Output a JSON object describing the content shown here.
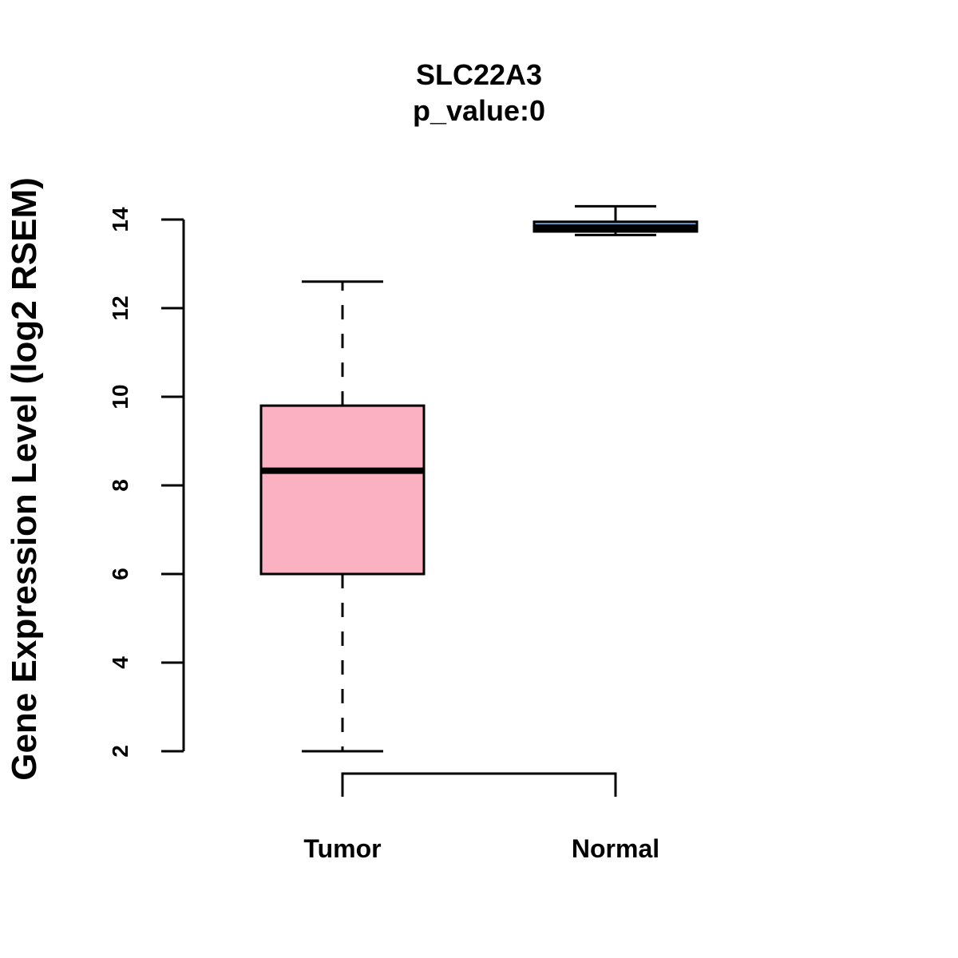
{
  "chart_data": {
    "type": "boxplot",
    "title": "SLC22A3",
    "subtitle": "p_value:0",
    "xlabel": "",
    "ylabel": "Gene Expression Level (log2 RSEM)",
    "ylim": [
      2,
      14
    ],
    "yticks": [
      2,
      4,
      6,
      8,
      10,
      12,
      14
    ],
    "categories": [
      "Tumor",
      "Normal"
    ],
    "series": [
      {
        "name": "Tumor",
        "color": "#fbb1c1",
        "min": 2.0,
        "q1": 6.0,
        "median": 8.33,
        "q3": 9.8,
        "max": 12.6
      },
      {
        "name": "Normal",
        "color": "#6fa8dc",
        "min": 13.65,
        "q1": 13.73,
        "median": 13.82,
        "q3": 13.95,
        "max": 14.3
      }
    ],
    "comparison_bracket": {
      "from": "Tumor",
      "to": "Normal"
    },
    "grid": false
  }
}
